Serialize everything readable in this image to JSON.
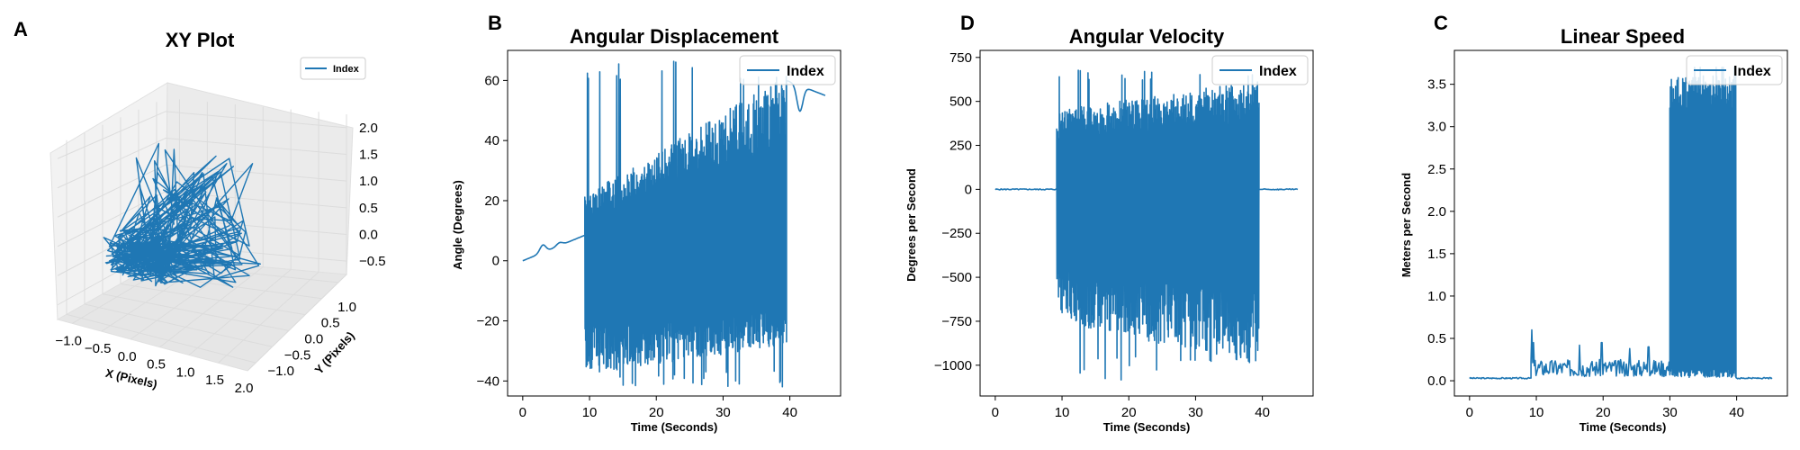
{
  "panels": {
    "A": {
      "letter": "A",
      "title": "XY Plot",
      "xlabel": "X (Pixels)",
      "ylabel": "Y (Pixels)"
    },
    "B": {
      "letter": "B",
      "title": "Angular Displacement",
      "xlabel": "Time (Seconds)",
      "ylabel": "Angle (Degrees)"
    },
    "D": {
      "letter": "D",
      "title": "Angular Velocity",
      "xlabel": "Time (Seconds)",
      "ylabel": "Degrees per Second"
    },
    "C": {
      "letter": "C",
      "title": "Linear Speed",
      "xlabel": "Time (Seconds)",
      "ylabel": "Meters per Second"
    }
  },
  "colors": {
    "series": "#1f77b4",
    "pane": "#f2f2f2",
    "grid": "#dcdcdc"
  },
  "chart_data": [
    {
      "id": "A",
      "type": "line",
      "projection": "3d",
      "title": "XY Plot",
      "xlabel": "X (Pixels)",
      "ylabel": "Y (Pixels)",
      "xlim": [
        -1.25,
        2.0
      ],
      "ylim": [
        -1.25,
        1.75
      ],
      "zlim": [
        -0.75,
        2.25
      ],
      "xticks": [
        "−1.0",
        "−0.5",
        "0.0",
        "0.5",
        "1.0",
        "1.5",
        "2.0"
      ],
      "yticks": [
        "−1.0",
        "−0.5",
        "0.0",
        "0.5",
        "1.0"
      ],
      "zticks": [
        "−0.5",
        "0.0",
        "0.5",
        "1.0",
        "1.5",
        "2.0"
      ],
      "legend": "upper right",
      "series": [
        {
          "name": "Index",
          "color": "#1f77b4"
        }
      ],
      "seed": 7,
      "n": 320
    },
    {
      "id": "B",
      "type": "line",
      "title": "Angular Displacement",
      "xlabel": "Time (Seconds)",
      "ylabel": "Angle (Degrees)",
      "xlim": [
        -2.27,
        47.6
      ],
      "ylim": [
        -45,
        70
      ],
      "xticks": [
        0,
        10,
        20,
        30,
        40
      ],
      "yticks": [
        -40,
        -20,
        0,
        20,
        40,
        60
      ],
      "legend": "upper right",
      "series": [
        {
          "name": "Index",
          "color": "#1f77b4"
        }
      ],
      "segments": [
        {
          "t0": 0,
          "t1": 9.3,
          "kind": "smooth",
          "from": 0,
          "to": 8.5,
          "bumps": [
            [
              3.0,
              2.5
            ],
            [
              5.5,
              1.0
            ]
          ]
        },
        {
          "t0": 9.3,
          "t1": 39.5,
          "kind": "osc",
          "low": [
            -38,
            -28
          ],
          "high": [
            22,
            62
          ],
          "max": 67,
          "min": -42
        },
        {
          "t0": 39.5,
          "t1": 45.3,
          "kind": "smooth",
          "from": 60,
          "to": 55,
          "bumps": [
            [
              41.5,
              -8.5
            ]
          ]
        }
      ],
      "seed": 11
    },
    {
      "id": "D",
      "type": "line",
      "title": "Angular Velocity",
      "xlabel": "Time (Seconds)",
      "ylabel": "Degrees per Second",
      "xlim": [
        -2.27,
        47.6
      ],
      "ylim": [
        -1175,
        790
      ],
      "xticks": [
        0,
        10,
        20,
        30,
        40
      ],
      "yticks": [
        -1000,
        -750,
        -500,
        -250,
        0,
        250,
        500,
        750
      ],
      "legend": "upper right",
      "series": [
        {
          "name": "Index",
          "color": "#1f77b4"
        }
      ],
      "segments": [
        {
          "t0": 0,
          "t1": 9.2,
          "kind": "flat",
          "level": 0,
          "noise": 6
        },
        {
          "t0": 9.2,
          "t1": 39.5,
          "kind": "osc",
          "low": [
            -750,
            -1000
          ],
          "high": [
            450,
            620
          ],
          "max": 680,
          "min": -1120
        },
        {
          "t0": 39.5,
          "t1": 45.3,
          "kind": "flat",
          "level": 0,
          "noise": 6
        }
      ],
      "seed": 5
    },
    {
      "id": "C",
      "type": "line",
      "title": "Linear Speed",
      "xlabel": "Time (Seconds)",
      "ylabel": "Meters per Second",
      "xlim": [
        -2.27,
        47.6
      ],
      "ylim": [
        -0.18,
        3.9
      ],
      "xticks": [
        0,
        10,
        20,
        30,
        40
      ],
      "yticks": [
        0.0,
        0.5,
        1.0,
        1.5,
        2.0,
        2.5,
        3.0,
        3.5
      ],
      "legend": "upper right",
      "series": [
        {
          "name": "Index",
          "color": "#1f77b4"
        }
      ],
      "segments": [
        {
          "t0": 0,
          "t1": 9.2,
          "kind": "flat",
          "level": 0.03,
          "noise": 0.015
        },
        {
          "t0": 9.2,
          "t1": 30.0,
          "kind": "noise",
          "base": 0.15,
          "amp": 0.2,
          "peaks": [
            [
              9.3,
              0.6
            ],
            [
              9.6,
              0.45
            ],
            [
              16.5,
              0.42
            ],
            [
              19.8,
              0.45
            ],
            [
              26.8,
              0.4
            ],
            [
              24.0,
              0.38
            ]
          ]
        },
        {
          "t0": 30.0,
          "t1": 39.9,
          "kind": "burst",
          "low": 0.1,
          "high": 3.6,
          "max": 3.7
        },
        {
          "t0": 39.9,
          "t1": 45.3,
          "kind": "flat",
          "level": 0.03,
          "noise": 0.015
        }
      ],
      "seed": 3
    }
  ]
}
